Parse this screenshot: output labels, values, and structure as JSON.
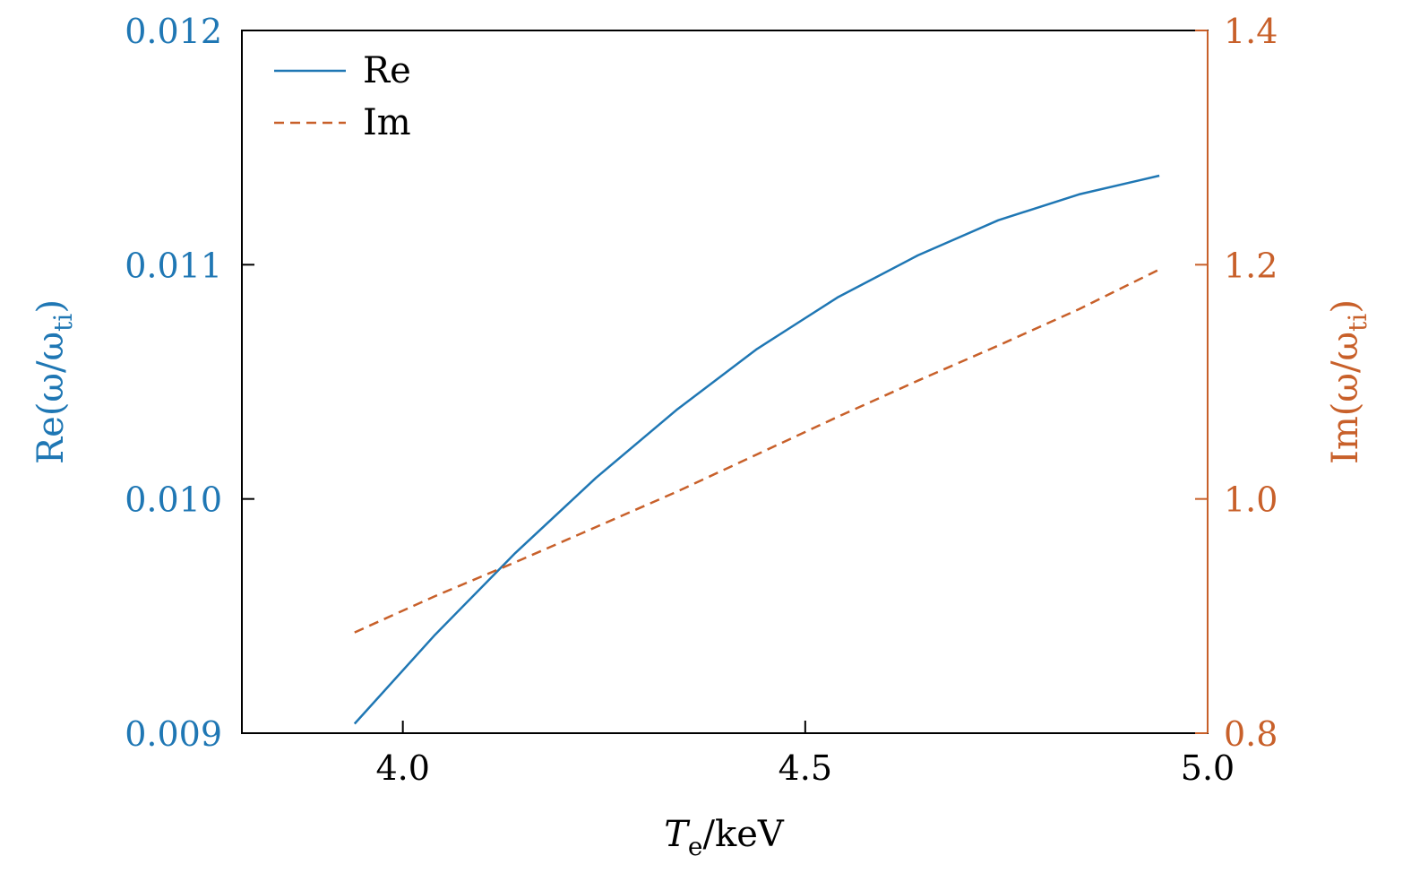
{
  "chart_data": {
    "type": "line",
    "xlabel": "T_e/keV",
    "xlabel_main": "T",
    "xlabel_sub": "e",
    "xlabel_rest": "/keV",
    "xlim": [
      3.8,
      5.0
    ],
    "xticks": [
      "4.0",
      "4.5",
      "5.0"
    ],
    "xtick_values": [
      4.0,
      4.5,
      5.0
    ],
    "y_left": {
      "label": "Re(ω/ω_ti)",
      "label_main": "Re(ω/ω",
      "label_sub": "ti",
      "label_end": ")",
      "lim": [
        0.009,
        0.012
      ],
      "ticks": [
        "0.009",
        "0.010",
        "0.011",
        "0.012"
      ],
      "tick_values": [
        0.009,
        0.01,
        0.011,
        0.012
      ],
      "color": "#1f77b4"
    },
    "y_right": {
      "label": "Im(ω/ω_ti)",
      "label_main": "Im(ω/ω",
      "label_sub": "ti",
      "label_end": ")",
      "lim": [
        0.8,
        1.4
      ],
      "ticks": [
        "0.8",
        "1.0",
        "1.2",
        "1.4"
      ],
      "tick_values": [
        0.8,
        1.0,
        1.2,
        1.4
      ],
      "color": "#c8602a"
    },
    "x": [
      3.94,
      4.04,
      4.14,
      4.24,
      4.34,
      4.44,
      4.54,
      4.64,
      4.74,
      4.84,
      4.94
    ],
    "series": [
      {
        "name": "Re",
        "axis": "left",
        "style": "solid",
        "color": "#1f77b4",
        "values": [
          0.00904,
          0.00942,
          0.00977,
          0.01009,
          0.01038,
          0.01064,
          0.01086,
          0.01104,
          0.01119,
          0.0113,
          0.01138
        ]
      },
      {
        "name": "Im",
        "axis": "right",
        "style": "dashed",
        "color": "#c8602a",
        "values": [
          0.886,
          0.917,
          0.946,
          0.976,
          1.006,
          1.038,
          1.07,
          1.101,
          1.131,
          1.162,
          1.196
        ]
      }
    ],
    "legend_position": "top-left",
    "grid": false
  }
}
